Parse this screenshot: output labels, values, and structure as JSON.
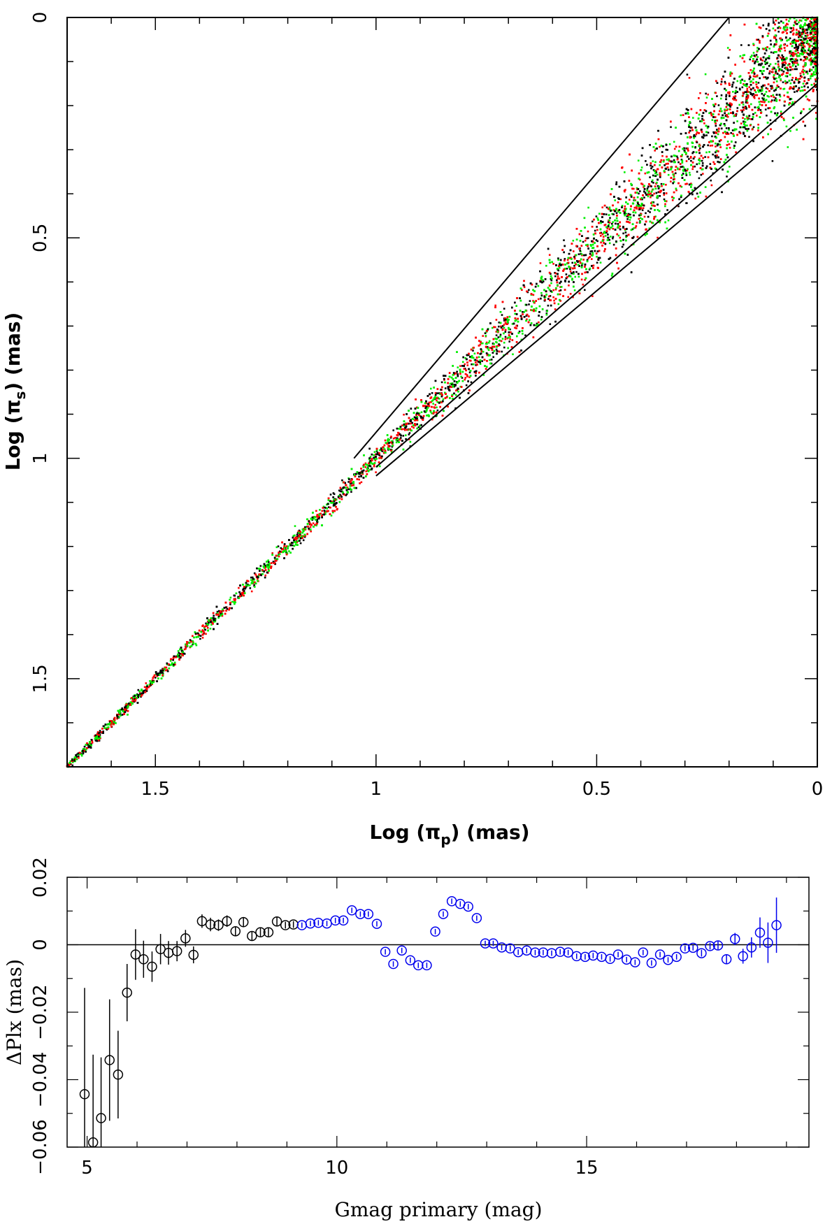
{
  "chart_data": [
    {
      "type": "scatter",
      "title": "",
      "xlabel": "Log (π",
      "xlabel_sub": "p",
      "xlabel_tail": ") (mas)",
      "ylabel": "Log (π",
      "ylabel_sub": "s",
      "ylabel_tail": ") (mas)",
      "xlim": [
        1.7,
        0.0
      ],
      "ylim": [
        0.0,
        1.7
      ],
      "x_reversed": true,
      "y_reversed": true,
      "x_ticks": [
        {
          "v": 1.5,
          "label": "1.5"
        },
        {
          "v": 1.0,
          "label": "1"
        },
        {
          "v": 0.5,
          "label": "0.5"
        },
        {
          "v": 0.0,
          "label": "0"
        }
      ],
      "y_ticks": [
        {
          "v": 0.0,
          "label": "0"
        },
        {
          "v": 0.5,
          "label": "0.5"
        },
        {
          "v": 1.0,
          "label": "1"
        },
        {
          "v": 1.5,
          "label": "1.5"
        }
      ],
      "x_minor_step": 0.1,
      "y_minor_step": 0.1,
      "grid": false,
      "series_colors": [
        "#000000",
        "#ff0000",
        "#00ee00"
      ],
      "spread_model": {
        "description_points": "dense cloud along 1:1 line, widening toward 0",
        "x_range": [
          0.0,
          1.7
        ],
        "sigma_at_0": 0.07,
        "sigma_at_1": 0.012,
        "sigma_at_1_7": 0.004
      },
      "guide_lines": [
        {
          "name": "upper",
          "x": [
            1.05,
            0.2
          ],
          "y": [
            1.0,
            0.0
          ]
        },
        {
          "name": "middle",
          "x": [
            1.0,
            0.0
          ],
          "y": [
            1.02,
            0.15
          ]
        },
        {
          "name": "lower",
          "x": [
            1.0,
            0.0
          ],
          "y": [
            1.04,
            0.2
          ]
        }
      ]
    },
    {
      "type": "scatter",
      "title": "",
      "xlabel": "Gmag primary (mag)",
      "ylabel": "ΔPlx (mas)",
      "xlim": [
        4.6,
        19.45
      ],
      "ylim": [
        -0.06,
        0.02
      ],
      "x_ticks": [
        {
          "v": 5,
          "label": "5"
        },
        {
          "v": 10,
          "label": "10"
        },
        {
          "v": 15,
          "label": "15"
        }
      ],
      "y_ticks": [
        {
          "v": 0.02,
          "label": "0.02"
        },
        {
          "v": 0.0,
          "label": "0"
        },
        {
          "v": -0.02,
          "label": "−0.02"
        },
        {
          "v": -0.04,
          "label": "−0.04"
        },
        {
          "v": -0.06,
          "label": "−0.06"
        }
      ],
      "x_minor_step": 1,
      "y_minor_step": 0.01,
      "zero_line": 0.0,
      "grid": false,
      "series": [
        {
          "color": "#000000",
          "points": [
            {
              "x": 4.95,
              "y": -0.0443,
              "err": 0.0315
            },
            {
              "x": 5.12,
              "y": -0.0586,
              "err": 0.026
            },
            {
              "x": 5.28,
              "y": -0.0514,
              "err": 0.018
            },
            {
              "x": 5.45,
              "y": -0.0342,
              "err": 0.018
            },
            {
              "x": 5.62,
              "y": -0.0385,
              "err": 0.013
            },
            {
              "x": 5.8,
              "y": -0.0142,
              "err": 0.0085
            },
            {
              "x": 5.97,
              "y": -0.0029,
              "err": 0.0075
            },
            {
              "x": 6.13,
              "y": -0.0043,
              "err": 0.0055
            },
            {
              "x": 6.3,
              "y": -0.0065,
              "err": 0.0045
            },
            {
              "x": 6.47,
              "y": -0.0013,
              "err": 0.0045
            },
            {
              "x": 6.63,
              "y": -0.0024,
              "err": 0.0035
            },
            {
              "x": 6.8,
              "y": -0.0019,
              "err": 0.003
            },
            {
              "x": 6.97,
              "y": 0.0019,
              "err": 0.0025
            },
            {
              "x": 7.13,
              "y": -0.003,
              "err": 0.0025
            },
            {
              "x": 7.3,
              "y": 0.007,
              "err": 0.002
            },
            {
              "x": 7.47,
              "y": 0.006,
              "err": 0.002
            },
            {
              "x": 7.63,
              "y": 0.0058,
              "err": 0.0017
            },
            {
              "x": 7.8,
              "y": 0.007,
              "err": 0.0017
            },
            {
              "x": 7.97,
              "y": 0.004,
              "err": 0.0015
            },
            {
              "x": 8.13,
              "y": 0.0067,
              "err": 0.0015
            },
            {
              "x": 8.3,
              "y": 0.0026,
              "err": 0.0013
            },
            {
              "x": 8.47,
              "y": 0.0037,
              "err": 0.0013
            },
            {
              "x": 8.63,
              "y": 0.0037,
              "err": 0.0012
            },
            {
              "x": 8.8,
              "y": 0.0069,
              "err": 0.0012
            },
            {
              "x": 8.97,
              "y": 0.0058,
              "err": 0.001
            },
            {
              "x": 9.13,
              "y": 0.006,
              "err": 0.001
            }
          ]
        },
        {
          "color": "#0000ee",
          "points": [
            {
              "x": 9.3,
              "y": 0.0058,
              "err": 0.0008
            },
            {
              "x": 9.47,
              "y": 0.0063,
              "err": 0.0008
            },
            {
              "x": 9.63,
              "y": 0.0065,
              "err": 0.0008
            },
            {
              "x": 9.8,
              "y": 0.0063,
              "err": 0.0008
            },
            {
              "x": 9.97,
              "y": 0.0072,
              "err": 0.0008
            },
            {
              "x": 10.13,
              "y": 0.0072,
              "err": 0.0008
            },
            {
              "x": 10.3,
              "y": 0.0102,
              "err": 0.0008
            },
            {
              "x": 10.47,
              "y": 0.0091,
              "err": 0.0008
            },
            {
              "x": 10.63,
              "y": 0.0091,
              "err": 0.0008
            },
            {
              "x": 10.8,
              "y": 0.0062,
              "err": 0.0008
            },
            {
              "x": 10.97,
              "y": -0.0021,
              "err": 0.0008
            },
            {
              "x": 11.13,
              "y": -0.0057,
              "err": 0.0008
            },
            {
              "x": 11.3,
              "y": -0.0017,
              "err": 0.0008
            },
            {
              "x": 11.47,
              "y": -0.0046,
              "err": 0.0008
            },
            {
              "x": 11.63,
              "y": -0.0061,
              "err": 0.0008
            },
            {
              "x": 11.8,
              "y": -0.0061,
              "err": 0.0008
            },
            {
              "x": 11.97,
              "y": 0.0039,
              "err": 0.0008
            },
            {
              "x": 12.13,
              "y": 0.0091,
              "err": 0.0008
            },
            {
              "x": 12.3,
              "y": 0.0129,
              "err": 0.0008
            },
            {
              "x": 12.47,
              "y": 0.0121,
              "err": 0.0008
            },
            {
              "x": 12.63,
              "y": 0.0113,
              "err": 0.0008
            },
            {
              "x": 12.8,
              "y": 0.0079,
              "err": 0.0008
            },
            {
              "x": 12.97,
              "y": 0.0004,
              "err": 0.0008
            },
            {
              "x": 13.13,
              "y": 0.0004,
              "err": 0.0008
            },
            {
              "x": 13.3,
              "y": -0.0008,
              "err": 0.0008
            },
            {
              "x": 13.47,
              "y": -0.0011,
              "err": 0.0008
            },
            {
              "x": 13.63,
              "y": -0.0022,
              "err": 0.0008
            },
            {
              "x": 13.8,
              "y": -0.0017,
              "err": 0.0008
            },
            {
              "x": 13.97,
              "y": -0.0023,
              "err": 0.0008
            },
            {
              "x": 14.13,
              "y": -0.0023,
              "err": 0.0008
            },
            {
              "x": 14.3,
              "y": -0.0025,
              "err": 0.0008
            },
            {
              "x": 14.47,
              "y": -0.0021,
              "err": 0.0008
            },
            {
              "x": 14.63,
              "y": -0.0023,
              "err": 0.0008
            },
            {
              "x": 14.8,
              "y": -0.0034,
              "err": 0.0008
            },
            {
              "x": 14.97,
              "y": -0.0036,
              "err": 0.0008
            },
            {
              "x": 15.13,
              "y": -0.0032,
              "err": 0.0008
            },
            {
              "x": 15.3,
              "y": -0.0036,
              "err": 0.0008
            },
            {
              "x": 15.47,
              "y": -0.0042,
              "err": 0.0008
            },
            {
              "x": 15.63,
              "y": -0.0029,
              "err": 0.0008
            },
            {
              "x": 15.8,
              "y": -0.0044,
              "err": 0.0008
            },
            {
              "x": 15.97,
              "y": -0.0052,
              "err": 0.0008
            },
            {
              "x": 16.13,
              "y": -0.0023,
              "err": 0.0008
            },
            {
              "x": 16.3,
              "y": -0.0054,
              "err": 0.0008
            },
            {
              "x": 16.47,
              "y": -0.0029,
              "err": 0.0008
            },
            {
              "x": 16.63,
              "y": -0.0045,
              "err": 0.0008
            },
            {
              "x": 16.8,
              "y": -0.0036,
              "err": 0.0008
            },
            {
              "x": 16.97,
              "y": -0.0011,
              "err": 0.0008
            },
            {
              "x": 17.13,
              "y": -0.0009,
              "err": 0.0008
            },
            {
              "x": 17.3,
              "y": -0.0025,
              "err": 0.001
            },
            {
              "x": 17.47,
              "y": -0.0004,
              "err": 0.001
            },
            {
              "x": 17.63,
              "y": -0.0002,
              "err": 0.0012
            },
            {
              "x": 17.8,
              "y": -0.0043,
              "err": 0.0015
            },
            {
              "x": 17.97,
              "y": 0.0017,
              "err": 0.0018
            },
            {
              "x": 18.13,
              "y": -0.0034,
              "err": 0.0022
            },
            {
              "x": 18.3,
              "y": -0.0008,
              "err": 0.003
            },
            {
              "x": 18.47,
              "y": 0.0036,
              "err": 0.0045
            },
            {
              "x": 18.63,
              "y": 0.0006,
              "err": 0.006
            },
            {
              "x": 18.8,
              "y": 0.0058,
              "err": 0.0082
            }
          ]
        }
      ]
    }
  ]
}
